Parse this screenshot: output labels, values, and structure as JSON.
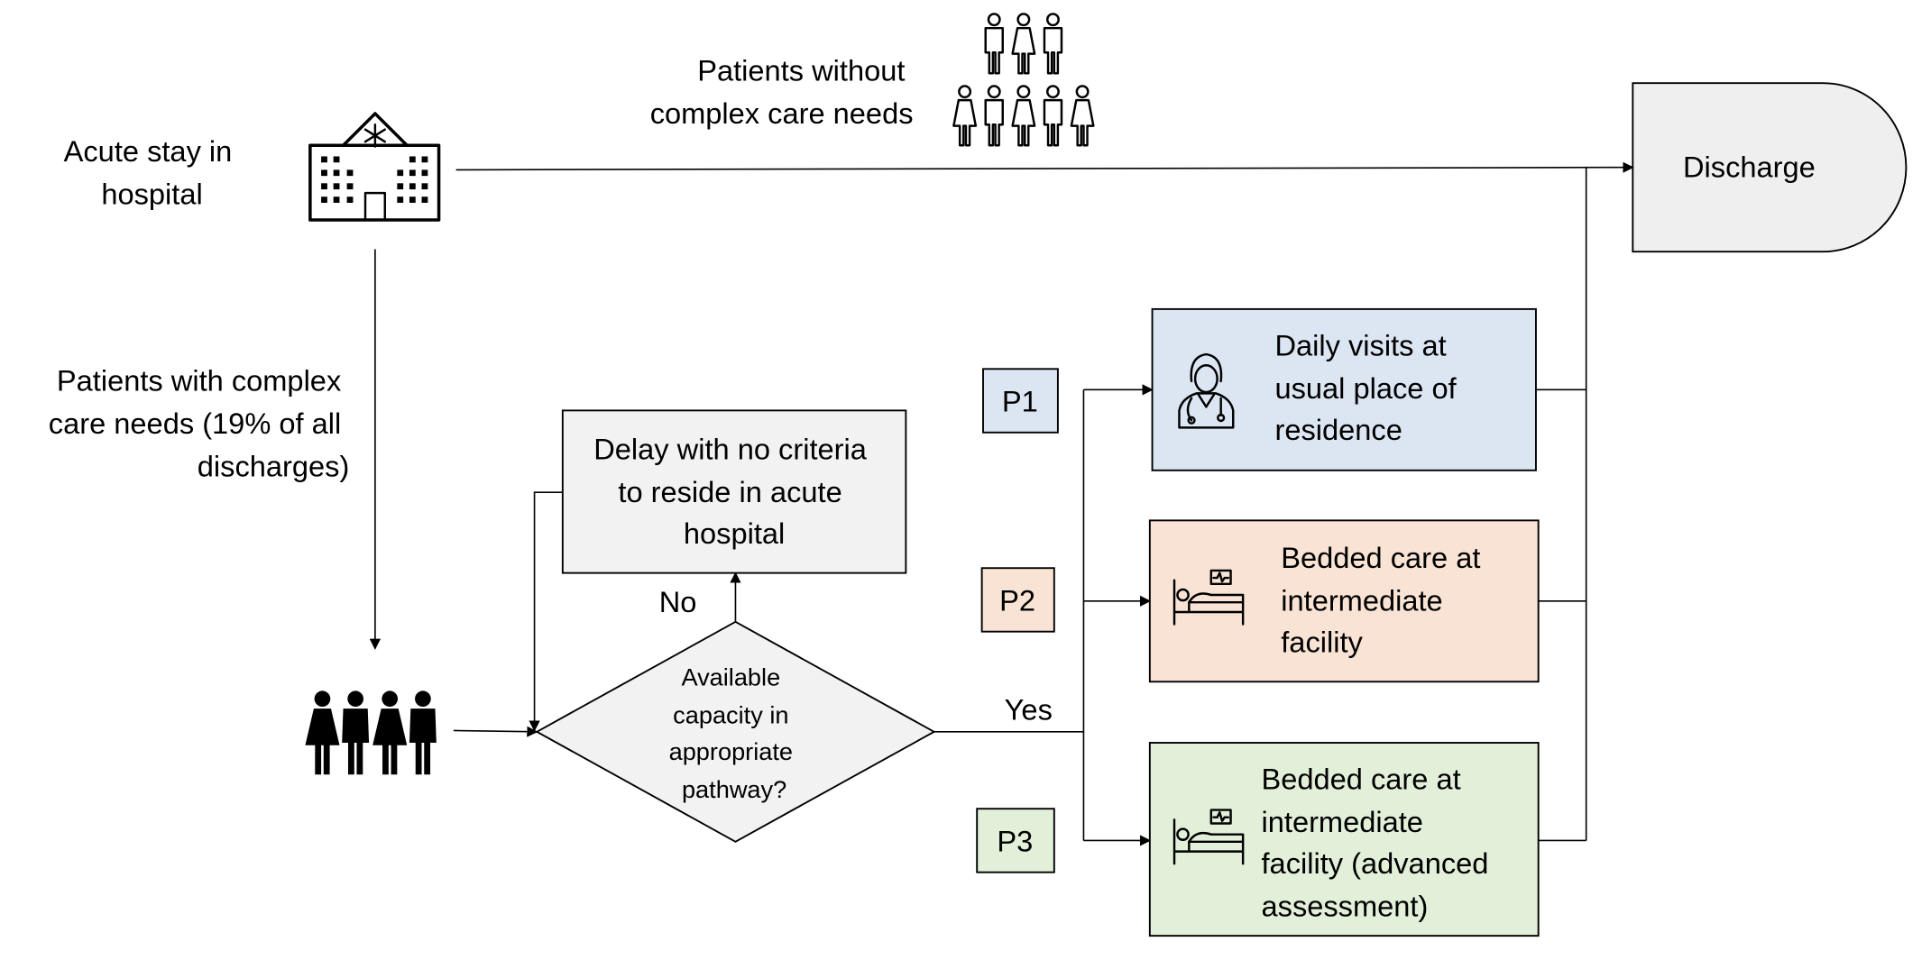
{
  "diagram": {
    "start_label": [
      "Acute stay in",
      "hospital"
    ],
    "no_complex_label": [
      "Patients without",
      "complex care needs"
    ],
    "complex_label": [
      "Patients with complex",
      "care needs (19% of all",
      "discharges)"
    ],
    "discharge_label": "Discharge",
    "delay_box": [
      "Delay with no criteria",
      "to reside in acute",
      "hospital"
    ],
    "decision": [
      "Available",
      "capacity in",
      "appropriate",
      "pathway?"
    ],
    "no_label": "No",
    "yes_label": "Yes",
    "pathways": [
      {
        "code": "P1",
        "text": [
          "Daily visits at",
          "usual place of",
          "residence"
        ],
        "fill": "#dce6f2",
        "icon": "clinician-icon"
      },
      {
        "code": "P2",
        "text": [
          "Bedded care at",
          "intermediate",
          "facility"
        ],
        "fill": "#f8e3d5",
        "icon": "hospital-bed-icon"
      },
      {
        "code": "P3",
        "text": [
          "Bedded care at",
          "intermediate",
          "facility (advanced",
          "assessment)"
        ],
        "fill": "#e2efd9",
        "icon": "hospital-bed-icon"
      }
    ],
    "colors": {
      "grey_fill": "#f2f2f2",
      "discharge_fill": "#efefef",
      "stroke": "#000000"
    }
  }
}
